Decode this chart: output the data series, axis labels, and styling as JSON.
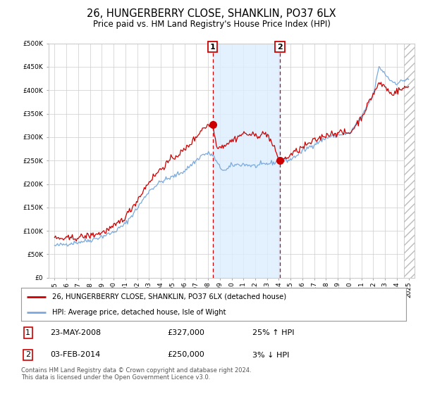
{
  "title": "26, HUNGERBERRY CLOSE, SHANKLIN, PO37 6LX",
  "subtitle": "Price paid vs. HM Land Registry's House Price Index (HPI)",
  "legend_line1": "26, HUNGERBERRY CLOSE, SHANKLIN, PO37 6LX (detached house)",
  "legend_line2": "HPI: Average price, detached house, Isle of Wight",
  "transaction1_date": "23-MAY-2008",
  "transaction1_price": 327000,
  "transaction1_label": "25% ↑ HPI",
  "transaction1_num": "1",
  "transaction2_date": "03-FEB-2014",
  "transaction2_price": 250000,
  "transaction2_label": "3% ↓ HPI",
  "transaction2_num": "2",
  "footnote": "Contains HM Land Registry data © Crown copyright and database right 2024.\nThis data is licensed under the Open Government Licence v3.0.",
  "hpi_color": "#7aaadd",
  "price_color": "#cc0000",
  "dot_color": "#cc0000",
  "vline_color": "#cc0000",
  "shade_color": "#ddeeff",
  "background_color": "#ffffff",
  "grid_color": "#cccccc",
  "ylim": [
    0,
    500000
  ],
  "yticks": [
    0,
    50000,
    100000,
    150000,
    200000,
    250000,
    300000,
    350000,
    400000,
    450000,
    500000
  ],
  "transaction1_x": 2008.39,
  "transaction2_x": 2014.09,
  "xmin": 1994.5,
  "xmax": 2025.5
}
